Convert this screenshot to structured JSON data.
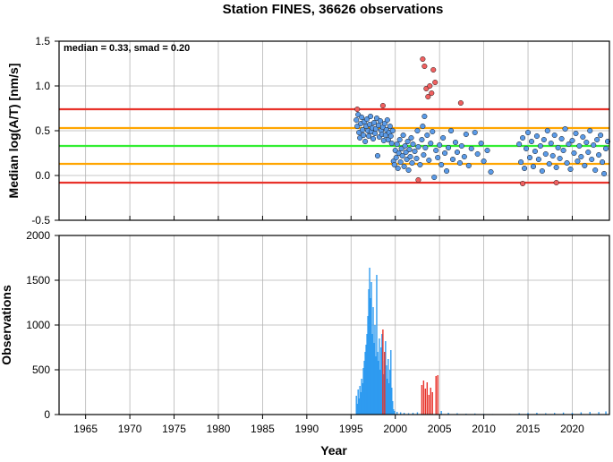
{
  "chart_data": [
    {
      "type": "scatter",
      "title": "Station FINES, 36626 observations",
      "annotation": "median = 0.33, smad = 0.20",
      "xlabel": "",
      "ylabel": "Median log(A/T) [nm/s]",
      "xlim": [
        1962,
        2024.2
      ],
      "ylim": [
        -0.5,
        1.5
      ],
      "yticks": [
        "-0.5",
        "0.0",
        "0.5",
        "1.0",
        "1.5"
      ],
      "grid": true,
      "reference_lines": [
        {
          "y": 0.74,
          "color": "#e8322a"
        },
        {
          "y": 0.53,
          "color": "#ffa500"
        },
        {
          "y": 0.33,
          "color": "#33ee33"
        },
        {
          "y": 0.13,
          "color": "#ffa500"
        },
        {
          "y": -0.08,
          "color": "#e8322a"
        }
      ],
      "series": [
        {
          "color": "#5b9be8",
          "points": [
            [
              1995.6,
              0.62
            ],
            [
              1995.7,
              0.55
            ],
            [
              1995.8,
              0.68
            ],
            [
              1995.9,
              0.48
            ],
            [
              1996.0,
              0.42
            ],
            [
              1996.1,
              0.58
            ],
            [
              1996.2,
              0.65
            ],
            [
              1996.3,
              0.51
            ],
            [
              1996.4,
              0.45
            ],
            [
              1996.5,
              0.6
            ],
            [
              1996.6,
              0.38
            ],
            [
              1996.7,
              0.55
            ],
            [
              1996.8,
              0.63
            ],
            [
              1996.9,
              0.5
            ],
            [
              1997.0,
              0.44
            ],
            [
              1997.1,
              0.57
            ],
            [
              1997.2,
              0.66
            ],
            [
              1997.3,
              0.49
            ],
            [
              1997.4,
              0.53
            ],
            [
              1997.5,
              0.41
            ],
            [
              1997.6,
              0.59
            ],
            [
              1997.7,
              0.47
            ],
            [
              1997.8,
              0.52
            ],
            [
              1997.9,
              0.64
            ],
            [
              1998.0,
              0.22
            ],
            [
              1998.1,
              0.56
            ],
            [
              1998.2,
              0.43
            ],
            [
              1998.3,
              0.61
            ],
            [
              1998.4,
              0.5
            ],
            [
              1998.5,
              0.46
            ],
            [
              1998.6,
              0.54
            ],
            [
              1998.7,
              0.39
            ],
            [
              1998.8,
              0.58
            ],
            [
              1998.9,
              0.45
            ],
            [
              1999.0,
              0.51
            ],
            [
              1999.1,
              0.62
            ],
            [
              1999.2,
              0.4
            ],
            [
              1999.3,
              0.48
            ],
            [
              1999.4,
              0.55
            ],
            [
              1999.5,
              0.44
            ],
            [
              1999.6,
              0.36
            ],
            [
              1999.7,
              0.5
            ],
            [
              1999.8,
              0.16
            ],
            [
              1999.9,
              0.12
            ],
            [
              2000.0,
              0.28
            ],
            [
              2000.1,
              0.2
            ],
            [
              2000.2,
              0.35
            ],
            [
              2000.3,
              0.08
            ],
            [
              2000.4,
              0.25
            ],
            [
              2000.5,
              0.4
            ],
            [
              2000.6,
              0.15
            ],
            [
              2000.7,
              0.3
            ],
            [
              2000.8,
              0.22
            ],
            [
              2000.9,
              0.45
            ],
            [
              2001.0,
              0.1
            ],
            [
              2001.1,
              0.33
            ],
            [
              2001.2,
              0.26
            ],
            [
              2001.3,
              0.18
            ],
            [
              2001.4,
              0.38
            ],
            [
              2001.5,
              0.06
            ],
            [
              2001.6,
              0.29
            ],
            [
              2001.7,
              0.21
            ],
            [
              2001.8,
              0.42
            ],
            [
              2001.9,
              0.14
            ],
            [
              2002.0,
              0.35
            ],
            [
              2002.2,
              0.27
            ],
            [
              2002.4,
              0.19
            ],
            [
              2002.5,
              0.5
            ],
            [
              2002.6,
              0.32
            ],
            [
              2002.8,
              0.12
            ],
            [
              2003.0,
              0.4
            ],
            [
              2003.1,
              0.55
            ],
            [
              2003.2,
              0.23
            ],
            [
              2003.3,
              0.66
            ],
            [
              2003.4,
              0.31
            ],
            [
              2003.6,
              0.45
            ],
            [
              2003.8,
              0.17
            ],
            [
              2004.0,
              0.36
            ],
            [
              2004.2,
              0.49
            ],
            [
              2004.4,
              -0.02
            ],
            [
              2004.6,
              0.28
            ],
            [
              2004.8,
              0.2
            ],
            [
              2005.0,
              0.34
            ],
            [
              2005.2,
              0.12
            ],
            [
              2005.4,
              0.42
            ],
            [
              2005.6,
              0.25
            ],
            [
              2005.8,
              0.05
            ],
            [
              2006.0,
              0.31
            ],
            [
              2006.3,
              0.5
            ],
            [
              2006.5,
              0.18
            ],
            [
              2006.8,
              0.37
            ],
            [
              2007.0,
              0.26
            ],
            [
              2007.3,
              0.14
            ],
            [
              2007.5,
              0.33
            ],
            [
              2007.8,
              0.21
            ],
            [
              2008.0,
              0.46
            ],
            [
              2008.3,
              0.11
            ],
            [
              2008.6,
              0.3
            ],
            [
              2009.0,
              0.48
            ],
            [
              2009.3,
              0.24
            ],
            [
              2009.7,
              0.36
            ],
            [
              2010.0,
              0.16
            ],
            [
              2010.4,
              0.28
            ],
            [
              2010.8,
              0.04
            ],
            [
              2014.0,
              0.35
            ],
            [
              2014.2,
              0.15
            ],
            [
              2014.4,
              0.42
            ],
            [
              2014.6,
              0.08
            ],
            [
              2014.8,
              0.3
            ],
            [
              2015.0,
              0.48
            ],
            [
              2015.2,
              0.2
            ],
            [
              2015.4,
              0.38
            ],
            [
              2015.6,
              0.1
            ],
            [
              2015.8,
              0.27
            ],
            [
              2016.0,
              0.44
            ],
            [
              2016.2,
              0.18
            ],
            [
              2016.4,
              0.33
            ],
            [
              2016.6,
              0.05
            ],
            [
              2016.8,
              0.4
            ],
            [
              2017.0,
              0.24
            ],
            [
              2017.2,
              0.5
            ],
            [
              2017.4,
              0.13
            ],
            [
              2017.6,
              0.36
            ],
            [
              2017.8,
              0.22
            ],
            [
              2018.0,
              0.45
            ],
            [
              2018.2,
              0.09
            ],
            [
              2018.4,
              0.31
            ],
            [
              2018.6,
              0.19
            ],
            [
              2018.8,
              0.41
            ],
            [
              2019.0,
              0.28
            ],
            [
              2019.2,
              0.52
            ],
            [
              2019.4,
              0.14
            ],
            [
              2019.6,
              0.35
            ],
            [
              2019.8,
              0.07
            ],
            [
              2020.0,
              0.39
            ],
            [
              2020.2,
              0.25
            ],
            [
              2020.4,
              0.47
            ],
            [
              2020.6,
              0.16
            ],
            [
              2020.8,
              0.33
            ],
            [
              2021.0,
              0.21
            ],
            [
              2021.2,
              0.43
            ],
            [
              2021.4,
              0.11
            ],
            [
              2021.6,
              0.37
            ],
            [
              2021.8,
              0.26
            ],
            [
              2022.0,
              0.5
            ],
            [
              2022.2,
              0.18
            ],
            [
              2022.4,
              0.34
            ],
            [
              2022.6,
              0.06
            ],
            [
              2022.8,
              0.4
            ],
            [
              2023.0,
              0.23
            ],
            [
              2023.2,
              0.45
            ],
            [
              2023.4,
              0.15
            ],
            [
              2023.6,
              0.02
            ],
            [
              2023.8,
              0.3
            ],
            [
              2024.0,
              0.38
            ]
          ]
        },
        {
          "color": "#f06060",
          "points": [
            [
              1995.7,
              0.74
            ],
            [
              1998.6,
              0.78
            ],
            [
              2002.6,
              -0.05
            ],
            [
              2003.1,
              1.3
            ],
            [
              2003.3,
              1.22
            ],
            [
              2003.5,
              0.97
            ],
            [
              2003.7,
              0.88
            ],
            [
              2003.9,
              1.0
            ],
            [
              2004.1,
              0.92
            ],
            [
              2004.3,
              1.18
            ],
            [
              2004.5,
              1.04
            ],
            [
              2007.4,
              0.81
            ],
            [
              2014.4,
              -0.09
            ],
            [
              2018.2,
              -0.08
            ]
          ]
        }
      ]
    },
    {
      "type": "bar",
      "title": "",
      "xlabel": "Year",
      "ylabel": "Observations",
      "xlim": [
        1962,
        2024.2
      ],
      "ylim": [
        0,
        2000
      ],
      "xticks": [
        "1965",
        "1970",
        "1975",
        "1980",
        "1985",
        "1990",
        "1995",
        "2000",
        "2005",
        "2010",
        "2015",
        "2020"
      ],
      "yticks": [
        "0",
        "500",
        "1000",
        "1500",
        "2000"
      ],
      "grid": true,
      "series": [
        {
          "color": "#2e9bf0",
          "points": [
            [
              1995.6,
              210
            ],
            [
              1995.7,
              120
            ],
            [
              1995.8,
              280
            ],
            [
              1995.9,
              180
            ],
            [
              1996.0,
              320
            ],
            [
              1996.1,
              250
            ],
            [
              1996.2,
              400
            ],
            [
              1996.3,
              350
            ],
            [
              1996.4,
              520
            ],
            [
              1996.5,
              600
            ],
            [
              1996.6,
              700
            ],
            [
              1996.7,
              780
            ],
            [
              1996.8,
              900
            ],
            [
              1996.9,
              1100
            ],
            [
              1997.0,
              1400
            ],
            [
              1997.1,
              1640
            ],
            [
              1997.2,
              1300
            ],
            [
              1997.3,
              1480
            ],
            [
              1997.4,
              900
            ],
            [
              1997.5,
              1200
            ],
            [
              1997.6,
              800
            ],
            [
              1997.7,
              1000
            ],
            [
              1997.8,
              650
            ],
            [
              1997.9,
              1560
            ],
            [
              1998.0,
              700
            ],
            [
              1998.1,
              600
            ],
            [
              1998.2,
              850
            ],
            [
              1998.3,
              500
            ],
            [
              1998.4,
              750
            ],
            [
              1998.5,
              900
            ],
            [
              1998.6,
              600
            ],
            [
              1998.7,
              450
            ],
            [
              1998.8,
              700
            ],
            [
              1998.9,
              820
            ],
            [
              1999.0,
              550
            ],
            [
              1999.1,
              400
            ],
            [
              1999.2,
              620
            ],
            [
              1999.3,
              350
            ],
            [
              1999.4,
              500
            ],
            [
              1999.5,
              720
            ],
            [
              1999.6,
              300
            ],
            [
              1999.7,
              150
            ],
            [
              1999.8,
              60
            ],
            [
              1999.9,
              40
            ],
            [
              2000.2,
              30
            ],
            [
              2000.6,
              25
            ],
            [
              2001.0,
              20
            ],
            [
              2001.5,
              15
            ],
            [
              2002.0,
              20
            ],
            [
              2002.5,
              25
            ],
            [
              2005.2,
              40
            ],
            [
              2006.0,
              20
            ],
            [
              2007.0,
              15
            ],
            [
              2008.0,
              10
            ],
            [
              2009.0,
              12
            ],
            [
              2010.0,
              8
            ],
            [
              2011.0,
              6
            ],
            [
              2012.0,
              5
            ],
            [
              2013.0,
              6
            ],
            [
              2014.0,
              15
            ],
            [
              2015.0,
              18
            ],
            [
              2016.0,
              20
            ],
            [
              2017.0,
              15
            ],
            [
              2018.0,
              18
            ],
            [
              2019.0,
              22
            ],
            [
              2020.0,
              20
            ],
            [
              2021.0,
              25
            ],
            [
              2022.0,
              30
            ],
            [
              2023.0,
              28
            ],
            [
              2023.8,
              35
            ]
          ]
        },
        {
          "color": "#e8322a",
          "points": [
            [
              1998.6,
              950
            ],
            [
              1998.8,
              700
            ],
            [
              2003.0,
              330
            ],
            [
              2003.2,
              380
            ],
            [
              2003.4,
              290
            ],
            [
              2003.6,
              360
            ],
            [
              2003.8,
              220
            ],
            [
              2004.0,
              300
            ],
            [
              2004.2,
              250
            ],
            [
              2004.6,
              430
            ],
            [
              2004.8,
              440
            ]
          ]
        }
      ]
    }
  ]
}
